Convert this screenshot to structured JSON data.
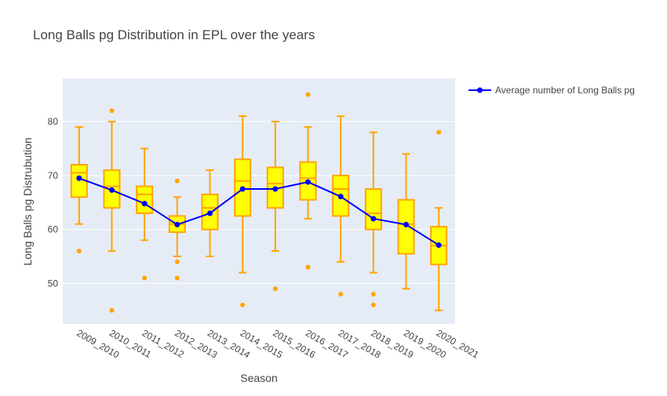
{
  "chart_data": {
    "type": "box",
    "title": "Long Balls pg Distribution in EPL over the years",
    "xlabel": "Season",
    "ylabel": "Long Balls pg Distrubution",
    "ylim": [
      42.5,
      88
    ],
    "yticks": [
      50,
      60,
      70,
      80
    ],
    "grid": true,
    "legend_position": "top-right",
    "colors": {
      "box_fill": "#ffff00",
      "box_line": "#ffa500",
      "line": "#0000ff",
      "plot_bg": "#e5ecf6"
    },
    "categories": [
      "2009_2010",
      "2010_2011",
      "2011_2012",
      "2012_2013",
      "2013_2014",
      "2014_2015",
      "2015_2016",
      "2016_2017",
      "2017_2018",
      "2018_2019",
      "2019_2020",
      "2020_2021"
    ],
    "boxes": [
      {
        "q1": 66,
        "median": 70.5,
        "q3": 72,
        "lower": 61,
        "upper": 79,
        "outliers": [
          56
        ]
      },
      {
        "q1": 64,
        "median": 68,
        "q3": 71,
        "lower": 56,
        "upper": 80,
        "outliers": [
          82,
          45
        ]
      },
      {
        "q1": 63,
        "median": 66.5,
        "q3": 68,
        "lower": 58,
        "upper": 75,
        "outliers": [
          51
        ]
      },
      {
        "q1": 59.5,
        "median": 61,
        "q3": 62.5,
        "lower": 55,
        "upper": 66,
        "outliers": [
          69,
          54,
          51
        ]
      },
      {
        "q1": 60,
        "median": 64,
        "q3": 66.5,
        "lower": 55,
        "upper": 71,
        "outliers": []
      },
      {
        "q1": 62.5,
        "median": 69,
        "q3": 73,
        "lower": 52,
        "upper": 81,
        "outliers": [
          46
        ]
      },
      {
        "q1": 64,
        "median": 68.5,
        "q3": 71.5,
        "lower": 56,
        "upper": 80,
        "outliers": [
          49
        ]
      },
      {
        "q1": 65.5,
        "median": 69.5,
        "q3": 72.5,
        "lower": 62,
        "upper": 79,
        "outliers": [
          85,
          53
        ]
      },
      {
        "q1": 62.5,
        "median": 67.5,
        "q3": 70,
        "lower": 54,
        "upper": 81,
        "outliers": [
          48
        ]
      },
      {
        "q1": 60,
        "median": 63,
        "q3": 67.5,
        "lower": 52,
        "upper": 78,
        "outliers": [
          48,
          46
        ]
      },
      {
        "q1": 55.5,
        "median": 61,
        "q3": 65.5,
        "lower": 49,
        "upper": 74,
        "outliers": []
      },
      {
        "q1": 53.5,
        "median": 57,
        "q3": 60.5,
        "lower": 45,
        "upper": 64,
        "outliers": [
          78
        ]
      }
    ],
    "series": [
      {
        "name": "Average number of Long Balls pg",
        "type": "line",
        "values": [
          69.5,
          67.3,
          64.8,
          60.9,
          63.0,
          67.5,
          67.5,
          68.8,
          66.1,
          62.0,
          60.9,
          57.1
        ]
      }
    ]
  }
}
